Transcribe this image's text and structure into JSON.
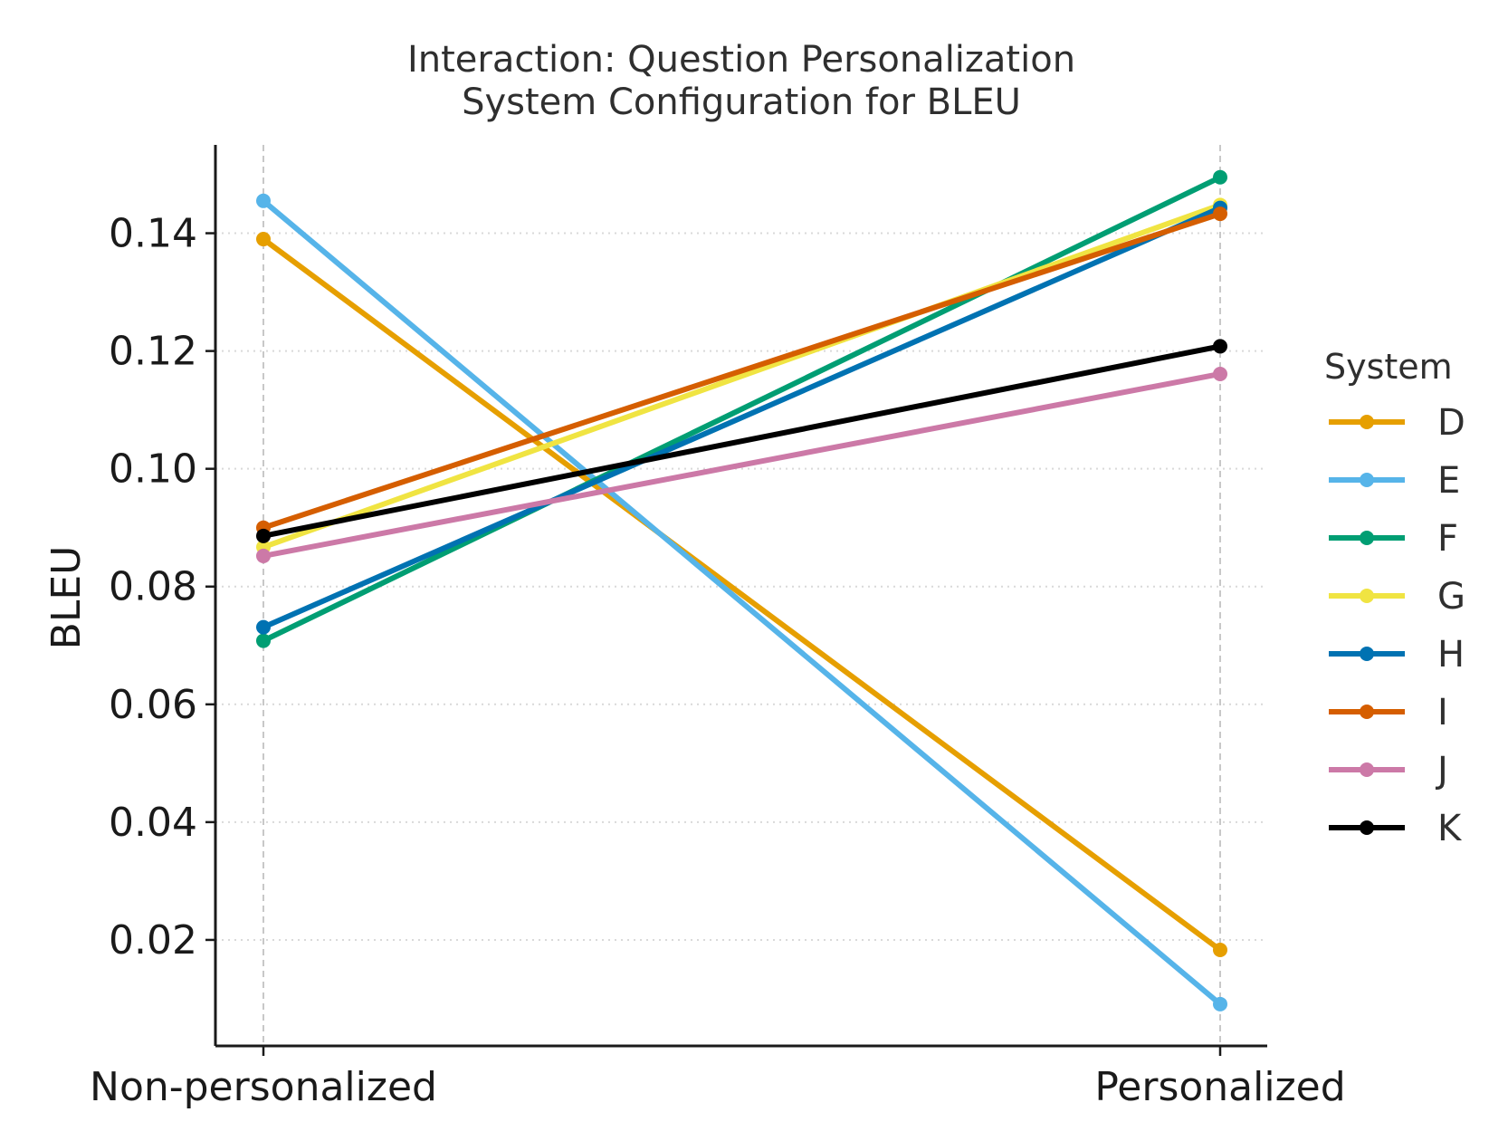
{
  "chart_data": {
    "type": "line",
    "title_lines": [
      "Interaction: Question Personalization",
      "System Configuration for BLEU"
    ],
    "xlabel": "",
    "ylabel": "BLEU",
    "categories": [
      "Non-personalized",
      "Personalized"
    ],
    "ylim": [
      0.002,
      0.155
    ],
    "yticks": [
      0.02,
      0.04,
      0.06,
      0.08,
      0.1,
      0.12,
      0.14
    ],
    "ytick_labels": [
      "0.02",
      "0.04",
      "0.06",
      "0.08",
      "0.10",
      "0.12",
      "0.14"
    ],
    "grid": "horizontal dotted",
    "legend": {
      "title": "System",
      "placement": "right"
    },
    "series": [
      {
        "name": "D",
        "color": "#E69F00",
        "values": [
          0.139,
          0.0183
        ]
      },
      {
        "name": "E",
        "color": "#56B4E9",
        "values": [
          0.1455,
          0.0091
        ]
      },
      {
        "name": "F",
        "color": "#009E73",
        "values": [
          0.0708,
          0.1495
        ]
      },
      {
        "name": "G",
        "color": "#F0E442",
        "values": [
          0.0867,
          0.1448
        ]
      },
      {
        "name": "H",
        "color": "#0072B2",
        "values": [
          0.0731,
          0.1443
        ]
      },
      {
        "name": "I",
        "color": "#D55E00",
        "values": [
          0.09,
          0.1433
        ]
      },
      {
        "name": "J",
        "color": "#CC79A7",
        "values": [
          0.0852,
          0.1161
        ]
      },
      {
        "name": "K",
        "color": "#000000",
        "values": [
          0.0886,
          0.1208
        ]
      }
    ]
  }
}
